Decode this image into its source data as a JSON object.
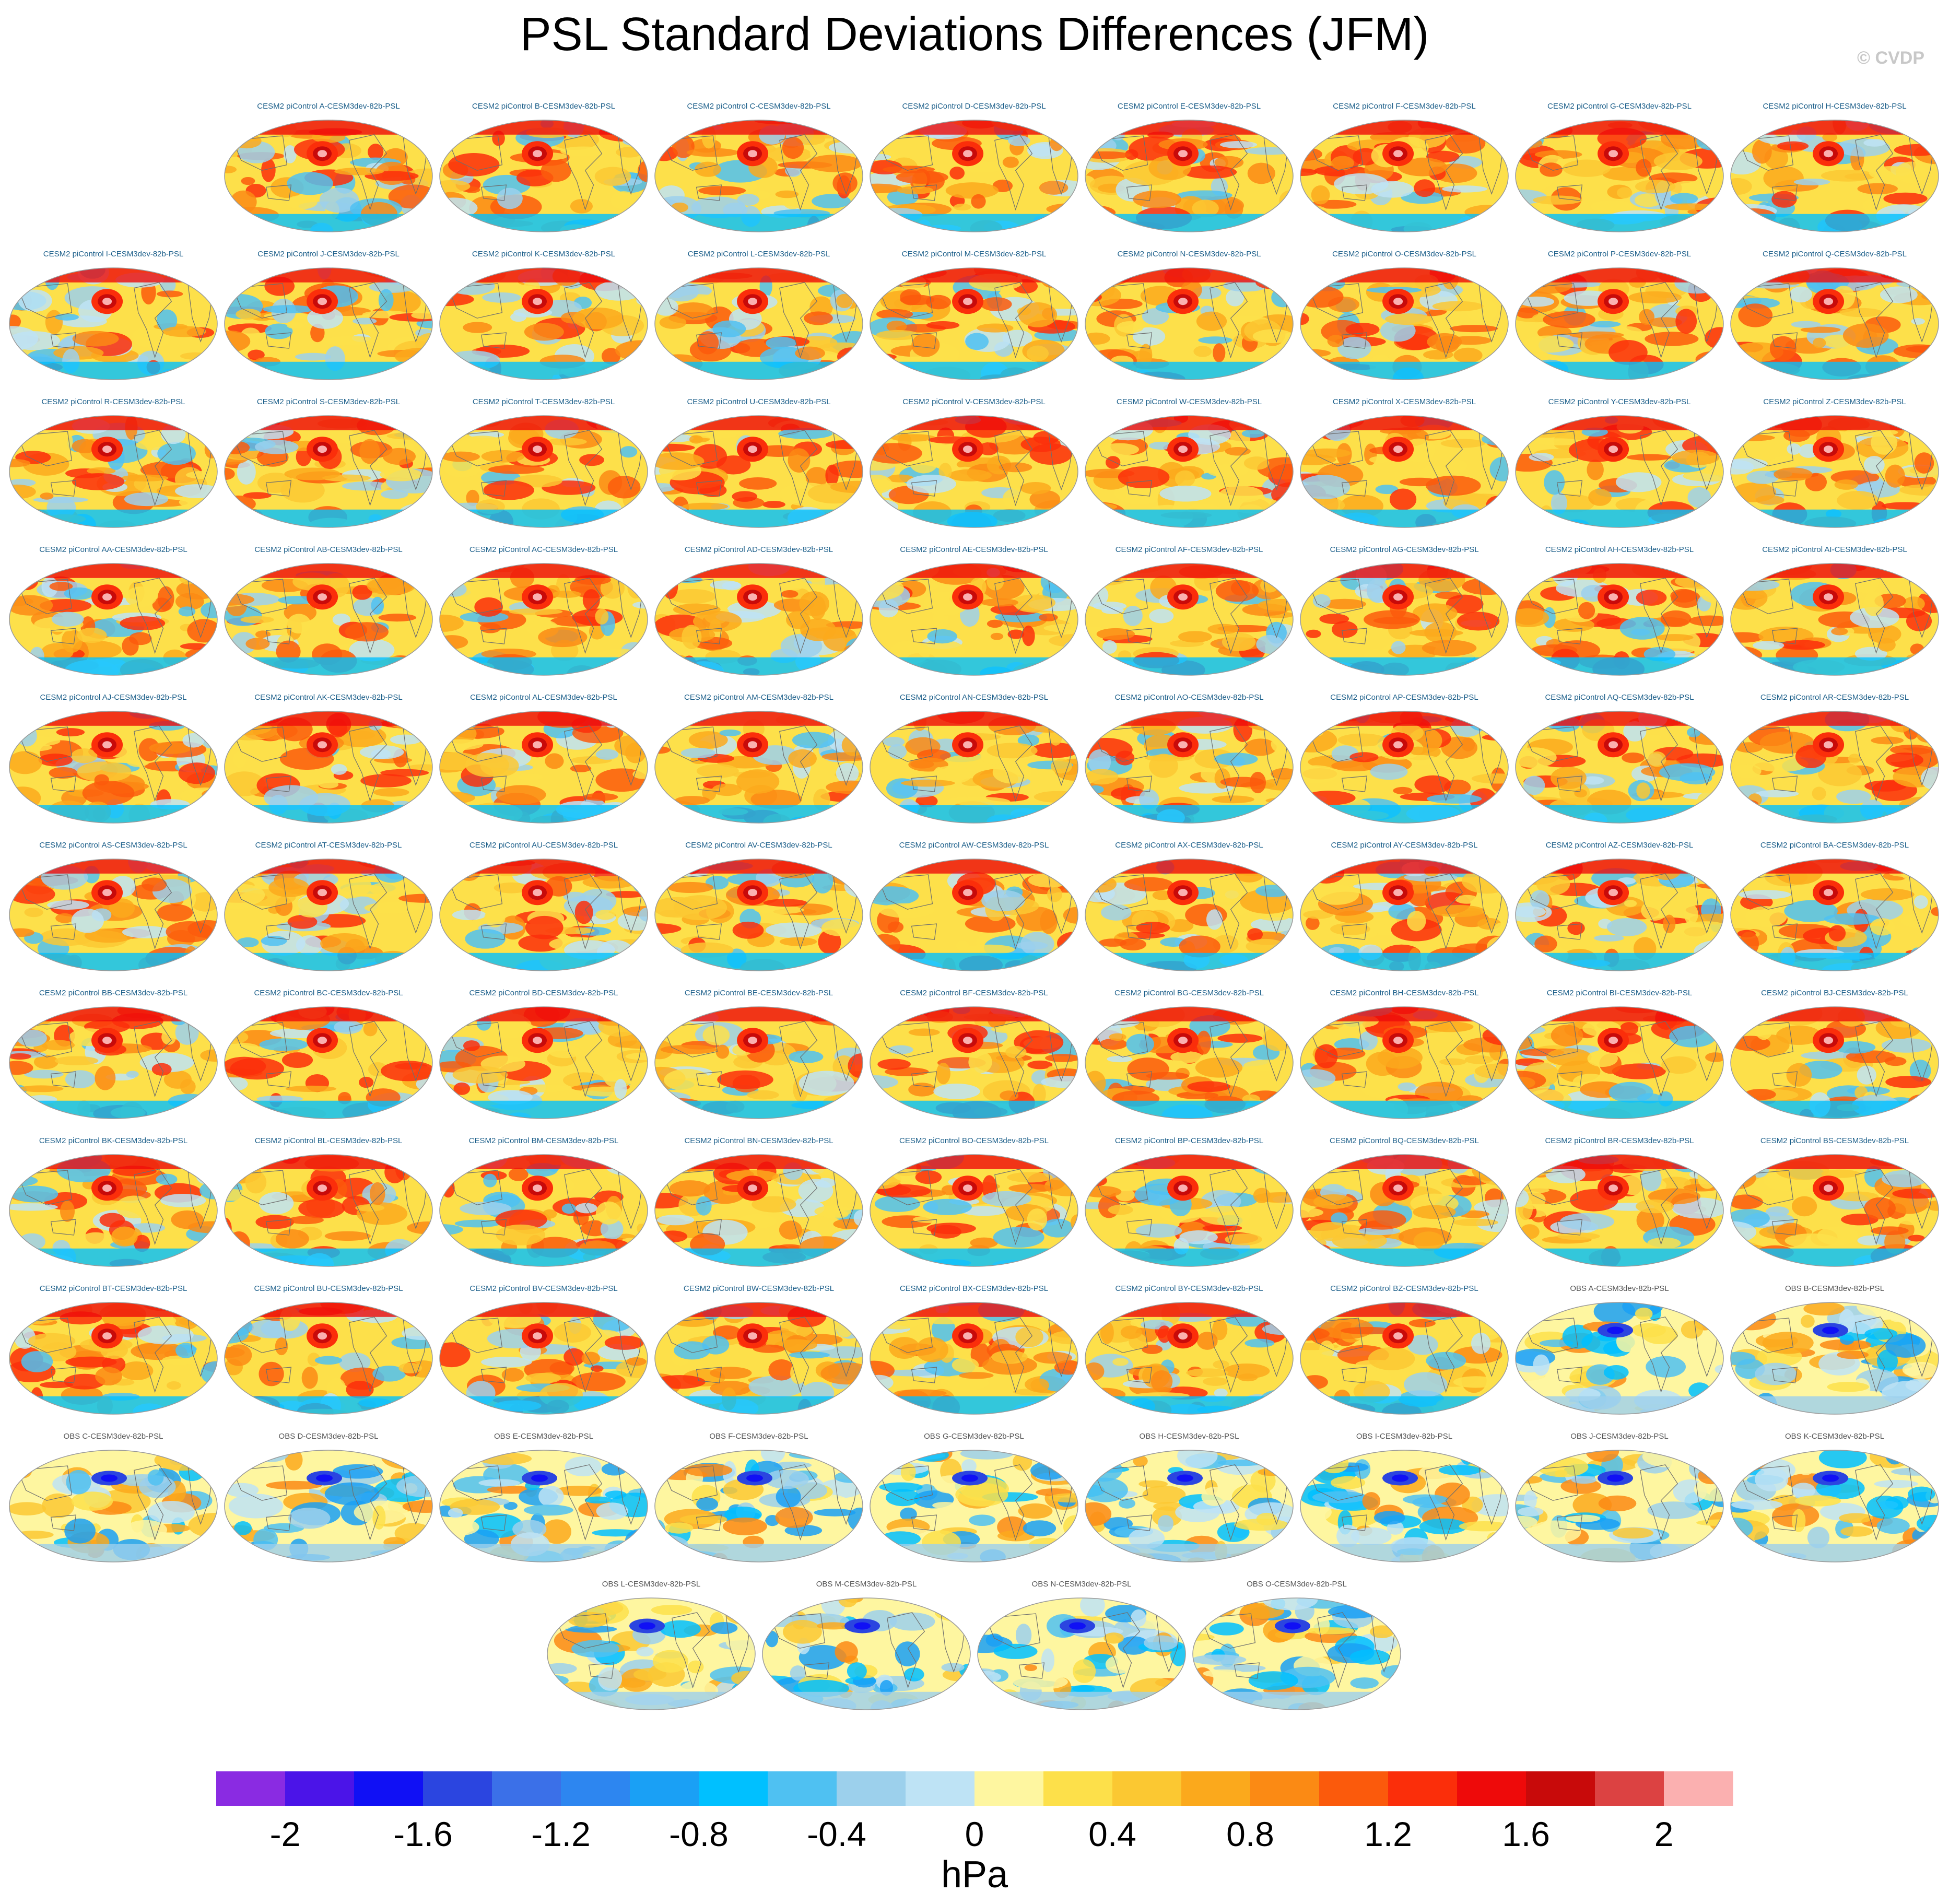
{
  "title": "PSL Standard Deviations Differences (JFM)",
  "watermark": "© CVDP",
  "chart_data": {
    "type": "map-panel-grid",
    "variable": "PSL",
    "season": "JFM",
    "panel_title_suffix": "-CESM3dev-82b-PSL",
    "rows": [
      {
        "start_col": 1,
        "panels": [
          "CESM2 piControl A",
          "CESM2 piControl B",
          "CESM2 piControl C",
          "CESM2 piControl D",
          "CESM2 piControl E",
          "CESM2 piControl F",
          "CESM2 piControl G",
          "CESM2 piControl H"
        ]
      },
      {
        "start_col": 0,
        "panels": [
          "CESM2 piControl I",
          "CESM2 piControl J",
          "CESM2 piControl K",
          "CESM2 piControl L",
          "CESM2 piControl M",
          "CESM2 piControl N",
          "CESM2 piControl O",
          "CESM2 piControl P",
          "CESM2 piControl Q"
        ]
      },
      {
        "start_col": 0,
        "panels": [
          "CESM2 piControl R",
          "CESM2 piControl S",
          "CESM2 piControl T",
          "CESM2 piControl U",
          "CESM2 piControl V",
          "CESM2 piControl W",
          "CESM2 piControl X",
          "CESM2 piControl Y",
          "CESM2 piControl Z"
        ]
      },
      {
        "start_col": 0,
        "panels": [
          "CESM2 piControl AA",
          "CESM2 piControl AB",
          "CESM2 piControl AC",
          "CESM2 piControl AD",
          "CESM2 piControl AE",
          "CESM2 piControl AF",
          "CESM2 piControl AG",
          "CESM2 piControl AH",
          "CESM2 piControl AI"
        ]
      },
      {
        "start_col": 0,
        "panels": [
          "CESM2 piControl AJ",
          "CESM2 piControl AK",
          "CESM2 piControl AL",
          "CESM2 piControl AM",
          "CESM2 piControl AN",
          "CESM2 piControl AO",
          "CESM2 piControl AP",
          "CESM2 piControl AQ",
          "CESM2 piControl AR"
        ]
      },
      {
        "start_col": 0,
        "panels": [
          "CESM2 piControl AS",
          "CESM2 piControl AT",
          "CESM2 piControl AU",
          "CESM2 piControl AV",
          "CESM2 piControl AW",
          "CESM2 piControl AX",
          "CESM2 piControl AY",
          "CESM2 piControl AZ",
          "CESM2 piControl BA"
        ]
      },
      {
        "start_col": 0,
        "panels": [
          "CESM2 piControl BB",
          "CESM2 piControl BC",
          "CESM2 piControl BD",
          "CESM2 piControl BE",
          "CESM2 piControl BF",
          "CESM2 piControl BG",
          "CESM2 piControl BH",
          "CESM2 piControl BI",
          "CESM2 piControl BJ"
        ]
      },
      {
        "start_col": 0,
        "panels": [
          "CESM2 piControl BK",
          "CESM2 piControl BL",
          "CESM2 piControl BM",
          "CESM2 piControl BN",
          "CESM2 piControl BO",
          "CESM2 piControl BP",
          "CESM2 piControl BQ",
          "CESM2 piControl BR",
          "CESM2 piControl BS"
        ]
      },
      {
        "start_col": 0,
        "panels": [
          "CESM2 piControl BT",
          "CESM2 piControl BU",
          "CESM2 piControl BV",
          "CESM2 piControl BW",
          "CESM2 piControl BX",
          "CESM2 piControl BY",
          "CESM2 piControl BZ",
          "OBS A",
          "OBS B"
        ]
      },
      {
        "start_col": 0,
        "panels": [
          "OBS C",
          "OBS D",
          "OBS E",
          "OBS F",
          "OBS G",
          "OBS H",
          "OBS I",
          "OBS J",
          "OBS K"
        ]
      },
      {
        "start_col": 2.5,
        "panels": [
          "OBS L",
          "OBS M",
          "OBS N",
          "OBS O"
        ]
      }
    ],
    "colorbar": {
      "units": "hPa",
      "levels": [
        -2.2,
        -2,
        -1.8,
        -1.6,
        -1.4,
        -1.2,
        -1,
        -0.8,
        -0.6,
        -0.4,
        -0.2,
        0,
        0.2,
        0.4,
        0.6,
        0.8,
        1,
        1.2,
        1.4,
        1.6,
        1.8,
        2,
        2.2
      ],
      "tick_labels": [
        "-2",
        "-1.6",
        "-1.2",
        "-0.8",
        "-0.4",
        "0",
        "0.4",
        "0.8",
        "1.2",
        "1.6",
        "2"
      ],
      "tick_values": [
        -2,
        -1.6,
        -1.2,
        -0.8,
        -0.4,
        0,
        0.4,
        0.8,
        1.2,
        1.6,
        2
      ],
      "colors": [
        "#8a2be2",
        "#4b14e8",
        "#1010f5",
        "#2b45e0",
        "#3b70e8",
        "#2d86f0",
        "#1aa0f5",
        "#00c0ff",
        "#4fc1f2",
        "#9cd0ec",
        "#bee3f5",
        "#fef6a0",
        "#fde04a",
        "#fbc832",
        "#fba91c",
        "#fb8a14",
        "#fb5a0c",
        "#fb2e0a",
        "#ee0a0a",
        "#c80a0a",
        "#dc4242",
        "#fbb0b0"
      ]
    }
  }
}
